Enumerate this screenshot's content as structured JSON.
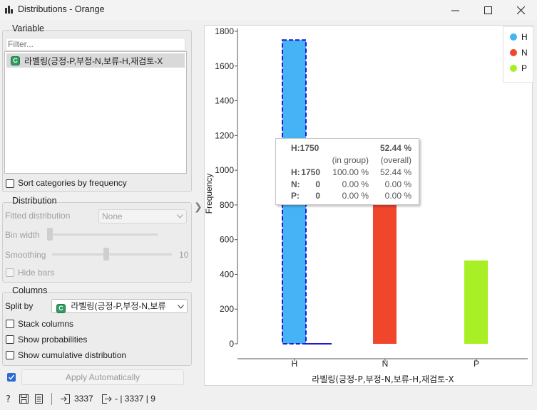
{
  "window": {
    "title": "Distributions - Orange"
  },
  "variable_box": {
    "title": "Variable",
    "filter_placeholder": "Filter...",
    "items": [
      {
        "type_badge": "C",
        "label": "라벨링(긍정-P,부정-N,보류-H,재검토-X"
      }
    ],
    "sort_label": "Sort categories by frequency",
    "sort_checked": false
  },
  "distribution_box": {
    "title": "Distribution",
    "fitted_label": "Fitted distribution",
    "fitted_value": "None",
    "bin_width_label": "Bin width",
    "bin_width_level": 0.0,
    "smoothing_label": "Smoothing",
    "smoothing_value": "10",
    "smoothing_level": 0.45,
    "hide_bars_label": "Hide bars",
    "hide_bars_checked": false
  },
  "columns_box": {
    "title": "Columns",
    "split_by_label": "Split by",
    "split_by_value": "라벨링(긍정-P,부정-N,보류",
    "stack_label": "Stack columns",
    "probabilities_label": "Show probabilities",
    "cumulative_label": "Show cumulative distribution"
  },
  "apply": {
    "label": "Apply Automatically",
    "checked": true
  },
  "status": {
    "input_count": "3337",
    "output_text": "- | 3337 | 9"
  },
  "colors": {
    "H": "#45b3f5",
    "N": "#ef462c",
    "P": "#a8ef26",
    "selection": "#1b1bd6"
  },
  "legend": [
    {
      "name": "H",
      "color": "#45b3f5"
    },
    {
      "name": "N",
      "color": "#ef462c"
    },
    {
      "name": "P",
      "color": "#a8ef26"
    }
  ],
  "tooltip": {
    "header_left": "H:1750",
    "header_right": "52.44 %",
    "sub_in_group": "(in group)",
    "sub_overall": "(overall)",
    "rows": [
      {
        "label": "H:",
        "count": "1750",
        "in_group": "100.00 %",
        "overall": "52.44 %"
      },
      {
        "label": "N:",
        "count": "0",
        "in_group": "0.00 %",
        "overall": "0.00 %"
      },
      {
        "label": "P:",
        "count": "0",
        "in_group": "0.00 %",
        "overall": "0.00 %"
      }
    ]
  },
  "chart_data": {
    "type": "bar",
    "categories": [
      "H",
      "N",
      "P"
    ],
    "series": [
      {
        "name": "H",
        "values": [
          1750,
          0,
          0
        ]
      },
      {
        "name": "N",
        "values": [
          0,
          1100,
          0
        ]
      },
      {
        "name": "P",
        "values": [
          0,
          0,
          480
        ]
      }
    ],
    "xlabel": "라벨링(긍정-P,부정-N,보류-H,재검토-X",
    "ylabel": "Frequency",
    "ylim": [
      0,
      1800
    ],
    "yticks": [
      0,
      200,
      400,
      600,
      800,
      1000,
      1200,
      1400,
      1600,
      1800
    ],
    "selected_category": "H",
    "legend_position": "top-right",
    "grid": false
  }
}
